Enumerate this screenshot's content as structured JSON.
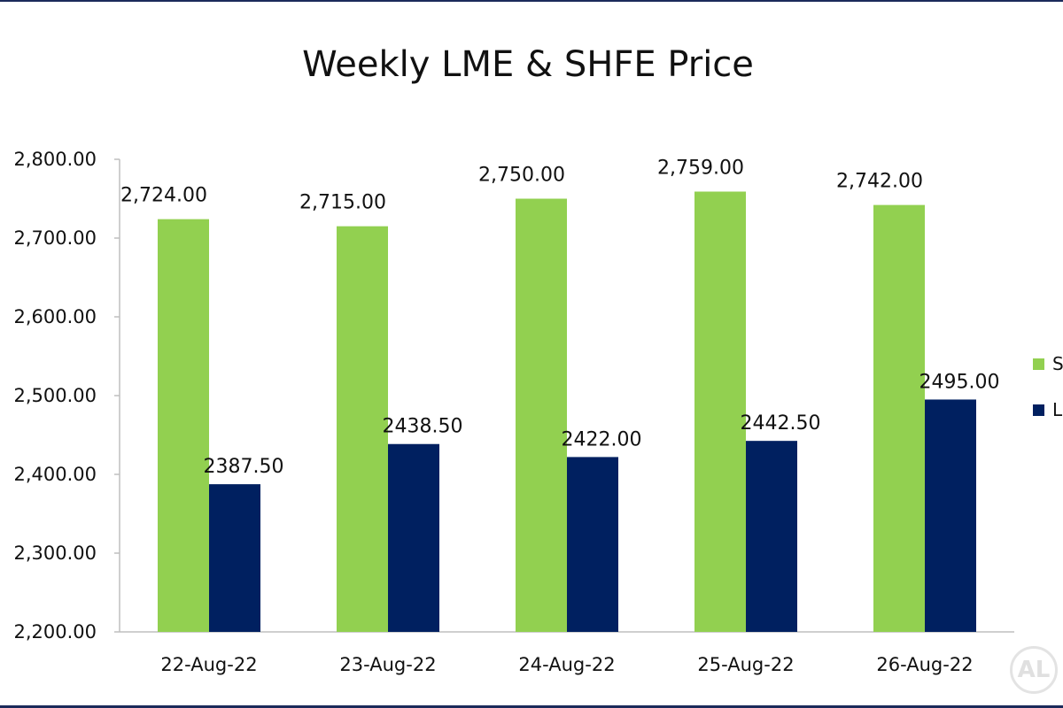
{
  "chart_data": {
    "type": "bar",
    "title": "Weekly LME & SHFE Price",
    "categories": [
      "22-Aug-22",
      "23-Aug-22",
      "24-Aug-22",
      "25-Aug-22",
      "26-Aug-22"
    ],
    "series": [
      {
        "name": "S",
        "color": "#92d050",
        "values": [
          2724.0,
          2715.0,
          2750.0,
          2759.0,
          2742.0
        ],
        "labels": [
          "2,724.00",
          "2,715.00",
          "2,750.00",
          "2,759.00",
          "2,742.00"
        ]
      },
      {
        "name": "L",
        "color": "#002060",
        "values": [
          2387.5,
          2438.5,
          2422.0,
          2442.5,
          2495.0
        ],
        "labels": [
          "2387.50",
          "2438.50",
          "2422.00",
          "2442.50",
          "2495.00"
        ]
      }
    ],
    "yticks": [
      "2,200.00",
      "2,300.00",
      "2,400.00",
      "2,500.00",
      "2,600.00",
      "2,700.00",
      "2,800.00"
    ],
    "ylim": [
      2200,
      2800
    ],
    "grid": false,
    "legend_position": "right"
  },
  "watermark_text": "AL"
}
